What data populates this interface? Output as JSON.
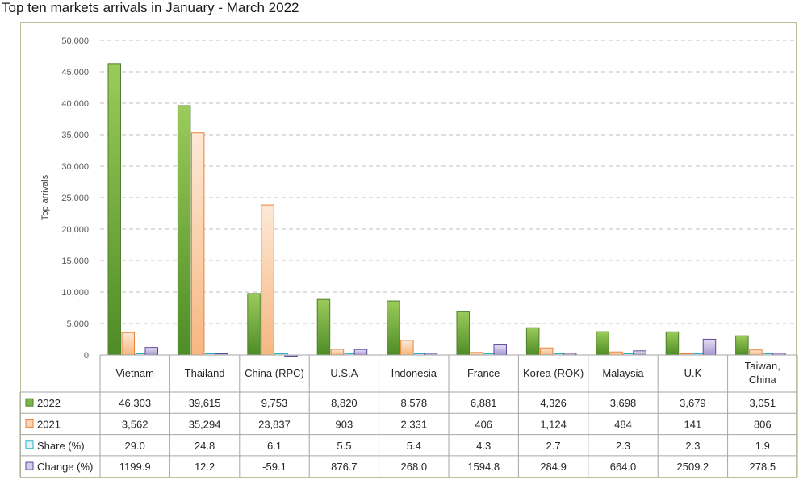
{
  "title": "Top ten markets arrivals in January - March 2022",
  "chart_data": {
    "type": "bar",
    "title": "Top ten markets arrivals in January - March 2022",
    "ylabel": "Top arrivals",
    "ylim": [
      0,
      50000
    ],
    "yticks": [
      "0",
      "5,000",
      "10,000",
      "15,000",
      "20,000",
      "25,000",
      "30,000",
      "35,000",
      "40,000",
      "45,000",
      "50,000"
    ],
    "grid": true,
    "legend": "data-table",
    "categories": [
      [
        "Vietnam"
      ],
      [
        "Thailand"
      ],
      [
        "China (RPC)"
      ],
      [
        "U.S.A"
      ],
      [
        "Indonesia"
      ],
      [
        "France"
      ],
      [
        "Korea (ROK)"
      ],
      [
        "Malaysia"
      ],
      [
        "U.K"
      ],
      [
        "Taiwan,",
        "China"
      ]
    ],
    "series": [
      {
        "name": "2022",
        "color": "#7ab648",
        "edge": "#4f7f2a",
        "values": [
          46303,
          39615,
          9753,
          8820,
          8578,
          6881,
          4326,
          3698,
          3679,
          3051
        ],
        "labels": [
          "46,303",
          "39,615",
          "9,753",
          "8,820",
          "8,578",
          "6,881",
          "4,326",
          "3,698",
          "3,679",
          "3,051"
        ]
      },
      {
        "name": "2021",
        "color": "#fcd5b4",
        "edge": "#e8823a",
        "values": [
          3562,
          35294,
          23837,
          903,
          2331,
          406,
          1124,
          484,
          141,
          806
        ],
        "labels": [
          "3,562",
          "35,294",
          "23,837",
          "903",
          "2,331",
          "406",
          "1,124",
          "484",
          "141",
          "806"
        ]
      },
      {
        "name": "Share (%)",
        "color": "#dff3f7",
        "edge": "#2ab0c5",
        "values": [
          29.0,
          24.8,
          6.1,
          5.5,
          5.4,
          4.3,
          2.7,
          2.3,
          2.3,
          1.9
        ],
        "labels": [
          "29.0",
          "24.8",
          "6.1",
          "5.5",
          "5.4",
          "4.3",
          "2.7",
          "2.3",
          "2.3",
          "1.9"
        ]
      },
      {
        "name": "Change (%)",
        "color": "#d6cfea",
        "edge": "#5b4a9b",
        "values": [
          1199.9,
          12.2,
          -59.1,
          876.7,
          268.0,
          1594.8,
          284.9,
          664.0,
          2509.2,
          278.5
        ],
        "labels": [
          "1199.9",
          "12.2",
          "-59.1",
          "876.7",
          "268.0",
          "1594.8",
          "284.9",
          "664.0",
          "2509.2",
          "278.5"
        ]
      }
    ]
  }
}
